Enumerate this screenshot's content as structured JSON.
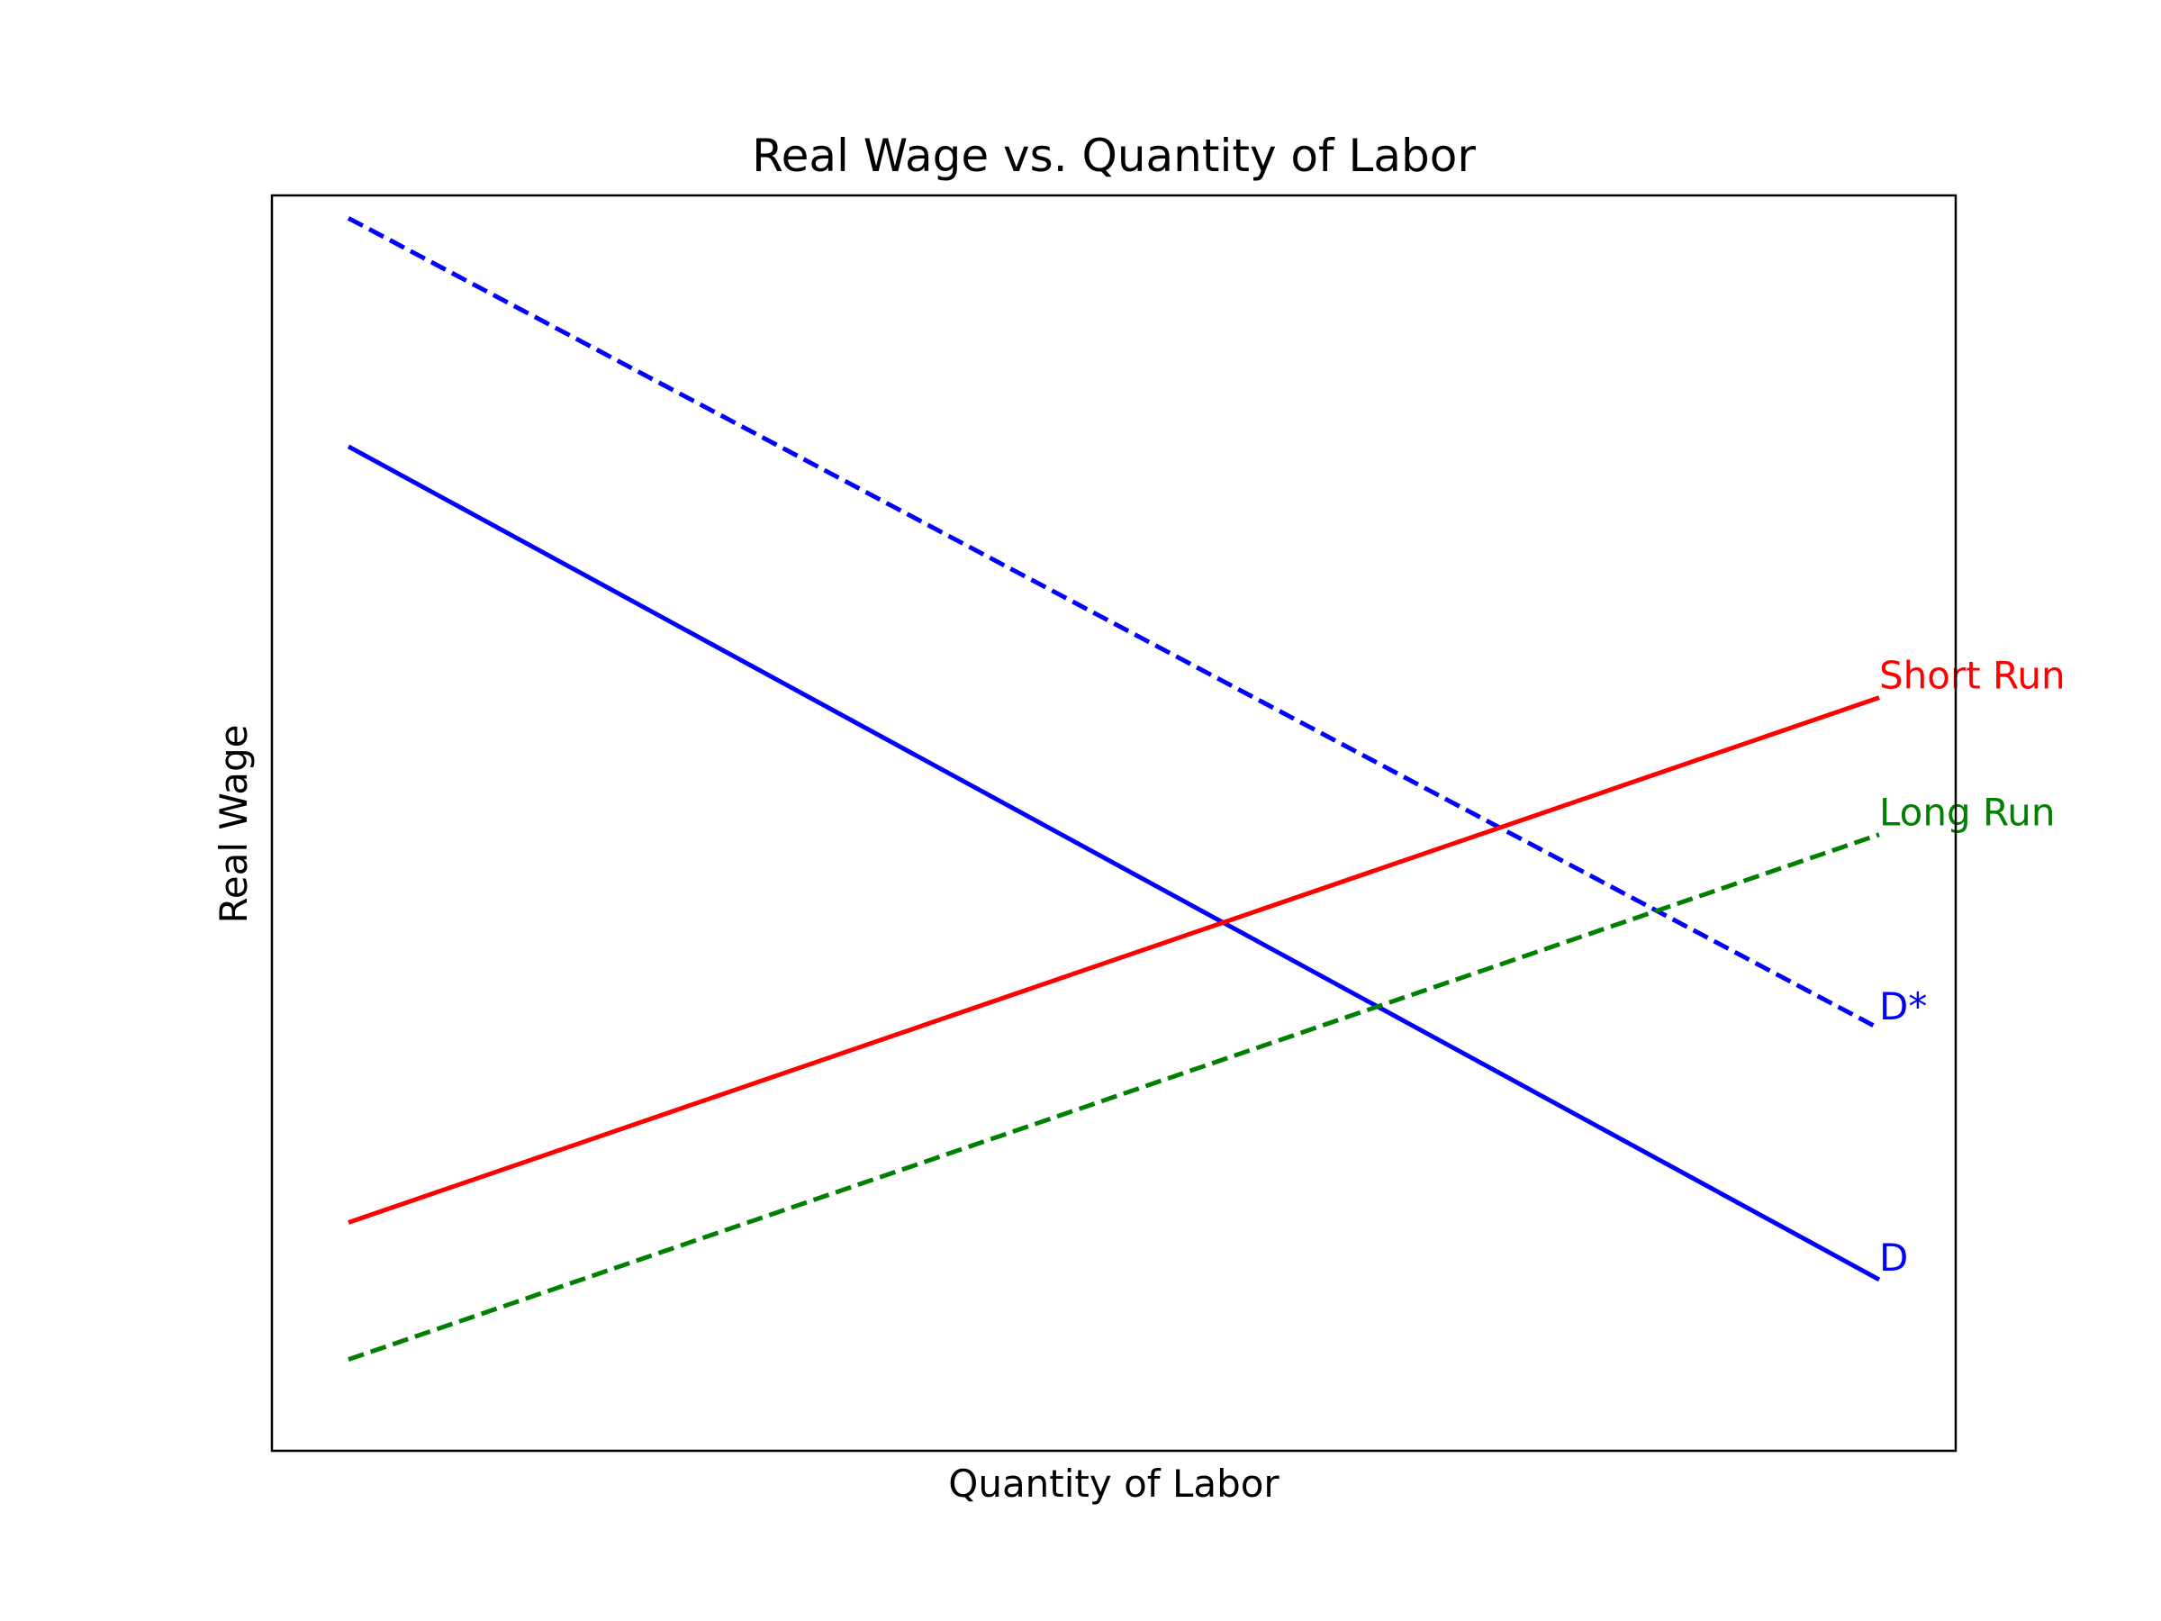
{
  "chart_data": {
    "type": "line",
    "title": "Real Wage vs. Quantity of Labor",
    "xlabel": "Quantity of Labor",
    "ylabel": "Real Wage",
    "xlim": [
      -0.5,
      10.5
    ],
    "ylim": [
      -0.5,
      10.5
    ],
    "x_ticks_shown": false,
    "y_ticks_shown": false,
    "grid": false,
    "legend": "none",
    "series": [
      {
        "name": "D",
        "x": [
          0,
          10
        ],
        "y": [
          8.3,
          1.0
        ],
        "color": "#0000ff",
        "style": "solid"
      },
      {
        "name": "D*",
        "x": [
          0,
          10
        ],
        "y": [
          10.3,
          3.2
        ],
        "color": "#0000ff",
        "style": "dashed"
      },
      {
        "name": "Short Run",
        "x": [
          0,
          10
        ],
        "y": [
          1.5,
          6.1
        ],
        "color": "#ff0000",
        "style": "solid"
      },
      {
        "name": "Long Run",
        "x": [
          0,
          10
        ],
        "y": [
          0.3,
          4.9
        ],
        "color": "#008000",
        "style": "dashed"
      }
    ]
  }
}
